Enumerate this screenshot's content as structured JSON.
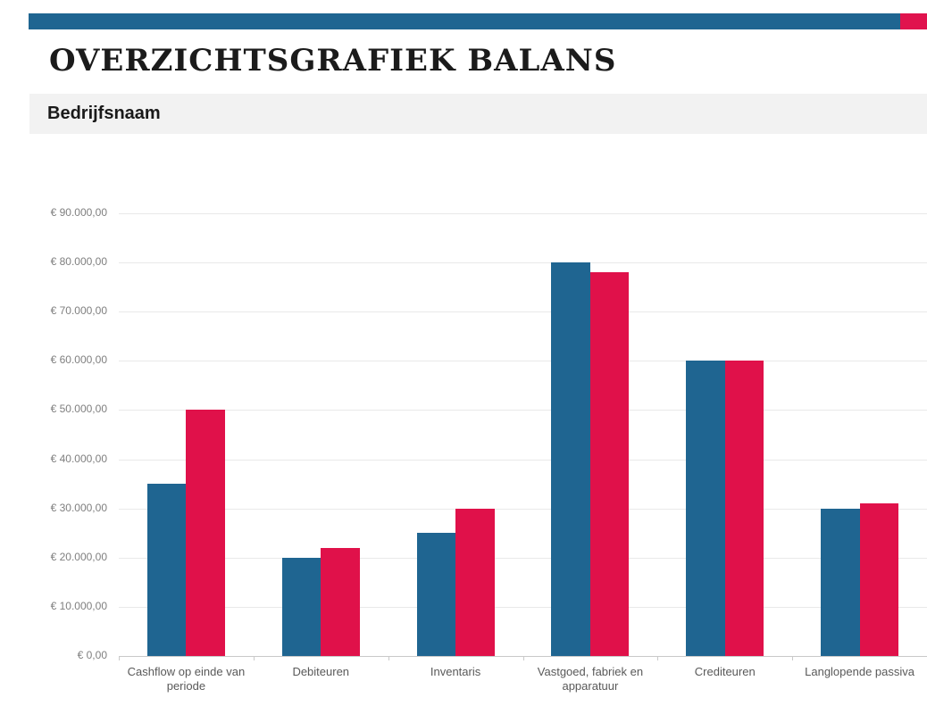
{
  "header": {
    "title": "OVERZICHTSGRAFIEK BALANS",
    "company_band_label": "Bedrijfsnaam"
  },
  "theme": {
    "banner_blue": "#1f6591",
    "banner_red": "#e0134e",
    "band_bg": "#f2f2f2",
    "grid_color": "#e9e9e9",
    "axis_line_color": "#c9c9c9",
    "y_label_color": "#7f7f7f",
    "category_label_color": "#595959"
  },
  "chart_data": {
    "type": "bar",
    "title": "",
    "xlabel": "",
    "ylabel": "",
    "grid": true,
    "legend": "none",
    "ylim": [
      0,
      90000
    ],
    "ytick_step": 10000,
    "ytick_labels": [
      "€ 0,00",
      "€ 10.000,00",
      "€ 20.000,00",
      "€ 30.000,00",
      "€ 40.000,00",
      "€ 50.000,00",
      "€ 60.000,00",
      "€ 70.000,00",
      "€ 80.000,00",
      "€ 90.000,00"
    ],
    "categories": [
      "Cashflow op einde van periode",
      "Debiteuren",
      "Inventaris",
      "Vastgoed, fabriek en apparatuur",
      "Crediteuren",
      "Langlopende passiva"
    ],
    "series": [
      {
        "name": "series-blue",
        "color": "#1f6591",
        "values": [
          35000,
          20000,
          25000,
          80000,
          60000,
          30000
        ]
      },
      {
        "name": "series-red",
        "color": "#e0114a",
        "values": [
          50000,
          22000,
          30000,
          78000,
          60000,
          31000
        ]
      }
    ]
  }
}
